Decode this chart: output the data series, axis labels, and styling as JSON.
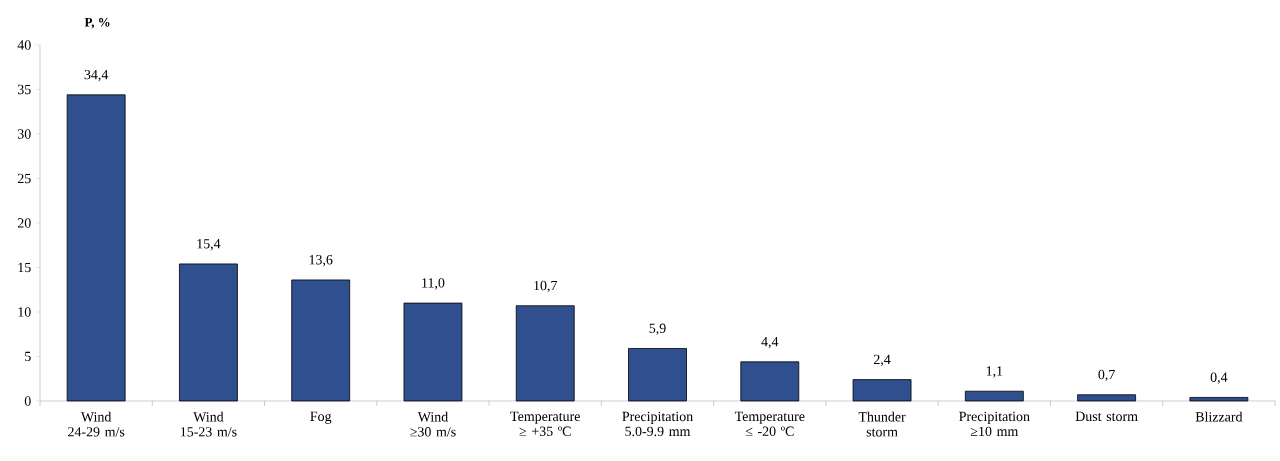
{
  "chart_data": {
    "type": "bar",
    "ylabel": "P, %",
    "categories": [
      "Wind 24-29 m/s",
      "Wind 15-23 m/s",
      "Fog",
      "Wind ≥30 m/s",
      "Temperature ≥ +35 ºC",
      "Precipitation 5.0-9.9 mm",
      "Temperature ≤ -20 ºC",
      "Thunder storm",
      "Precipitation ≥10 mm",
      "Dust storm",
      "Blizzard"
    ],
    "values": [
      34.4,
      15.4,
      13.6,
      11.0,
      10.7,
      5.9,
      4.4,
      2.4,
      1.1,
      0.7,
      0.4
    ],
    "value_labels": [
      "34,4",
      "15,4",
      "13,6",
      "11,0",
      "10,7",
      "5,9",
      "4,4",
      "2,4",
      "1,1",
      "0,7",
      "0,4"
    ],
    "color": "#2f4f8f",
    "ylim": [
      0,
      40
    ],
    "yticks": [
      0,
      5,
      10,
      15,
      20,
      25,
      30,
      35,
      40
    ],
    "grid": false
  }
}
